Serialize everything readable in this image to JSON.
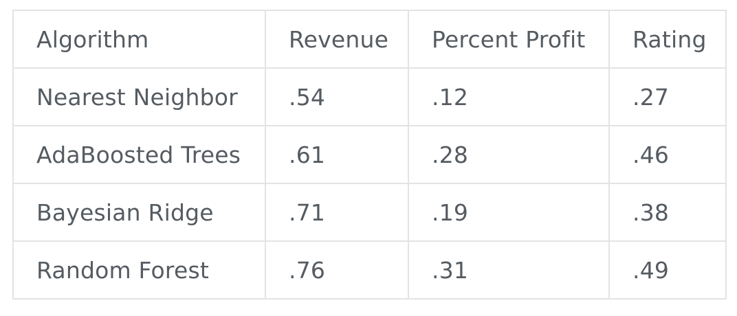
{
  "table": {
    "headers": [
      "Algorithm",
      "Revenue",
      "Percent Profit",
      "Rating"
    ],
    "rows": [
      [
        "Nearest Neighbor",
        ".54",
        ".12",
        ".27"
      ],
      [
        "AdaBoosted Trees",
        ".61",
        ".28",
        ".46"
      ],
      [
        "Bayesian Ridge",
        ".71",
        ".19",
        ".38"
      ],
      [
        "Random Forest",
        ".76",
        ".31",
        ".49"
      ]
    ]
  }
}
